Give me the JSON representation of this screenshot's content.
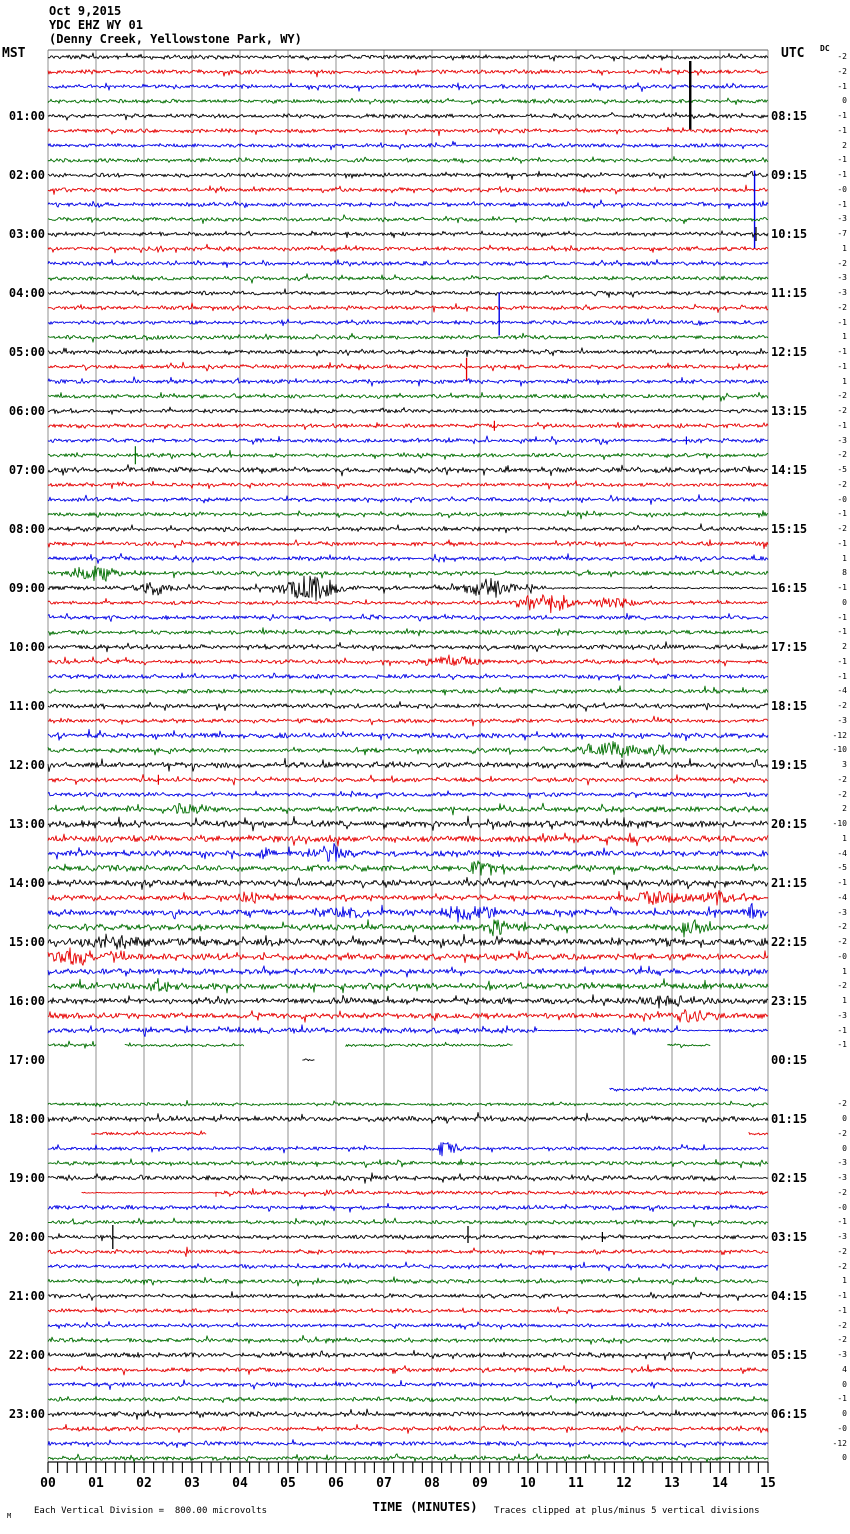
{
  "header": {
    "date": "Oct 9,2015",
    "station": "YDC EHZ WY 01",
    "location": "(Denny Creek, Yellowstone Park, WY)"
  },
  "axes": {
    "left_title": "MST",
    "right_title": "UTC",
    "dc_title": "DC",
    "x_title": "TIME (MINUTES)",
    "x_ticks": [
      "00",
      "01",
      "02",
      "03",
      "04",
      "05",
      "06",
      "07",
      "08",
      "09",
      "10",
      "11",
      "12",
      "13",
      "14",
      "15"
    ]
  },
  "footer": {
    "corner_mark": "M",
    "scale_note": "Each Vertical Division =  800.00 microvolts",
    "clip_note": "Traces clipped at plus/minus 5 vertical divisions"
  },
  "chart_data": {
    "type": "line",
    "title": "Helicorder / webicorder seismogram, station YDC EHZ WY 01 (Denny Creek, Yellowstone Park, WY), Oct 9, 2015",
    "x_range_minutes": [
      0,
      15
    ],
    "minutes_per_row": 15,
    "rows": 96,
    "row_start_mst": "00:00",
    "grid": true,
    "clip_divisions": 5,
    "microvolts_per_division": 800.0,
    "trace_colors_cycle": [
      "#000000",
      "#e60000",
      "#0000e6",
      "#006e00"
    ],
    "left_time_labels": [
      "01:00",
      "02:00",
      "03:00",
      "04:00",
      "05:00",
      "06:00",
      "07:00",
      "08:00",
      "09:00",
      "10:00",
      "11:00",
      "12:00",
      "13:00",
      "14:00",
      "15:00",
      "16:00",
      "17:00",
      "18:00",
      "19:00",
      "20:00",
      "21:00",
      "22:00",
      "23:00"
    ],
    "right_time_labels": [
      "08:15",
      "09:15",
      "10:15",
      "11:15",
      "12:15",
      "13:15",
      "14:15",
      "15:15",
      "16:15",
      "17:15",
      "18:15",
      "19:15",
      "20:15",
      "21:15",
      "22:15",
      "23:15",
      "00:15",
      "01:15",
      "02:15",
      "03:15",
      "04:15",
      "05:15",
      "06:15"
    ],
    "dc_offsets": [
      "-2",
      "-2",
      "-1",
      "0",
      "-1",
      "-1",
      "2",
      "-1",
      "-1",
      "-0",
      "-1",
      "-3",
      "-7",
      "1",
      "-2",
      "-3",
      "-3",
      "-2",
      "-1",
      "1",
      "-1",
      "-1",
      "1",
      "-2",
      "-2",
      "-1",
      "-3",
      "-2",
      "-5",
      "-2",
      "-0",
      "-1",
      "-2",
      "-1",
      "1",
      "8",
      "-1",
      "0",
      "-1",
      "-1",
      "2",
      "-1",
      "-1",
      "-4",
      "-2",
      "-3",
      "-12",
      "-10",
      "3",
      "-2",
      "-2",
      "2",
      "-10",
      "1",
      "-4",
      "-5",
      "-1",
      "-4",
      "-3",
      "-2",
      "-2",
      "-0",
      "1",
      "-2",
      "1",
      "-3",
      "-1",
      "-1",
      "",
      "",
      "",
      "-2",
      "0",
      "-2",
      "0",
      "-3",
      "-3",
      "-2",
      "-0",
      "-1",
      "-3",
      "-2",
      "-2",
      "1",
      "-1",
      "-1",
      "-2",
      "-2",
      "-3",
      "4",
      "0",
      "-1",
      "0",
      "-0",
      "-12",
      "0"
    ],
    "traces": [
      {
        "a": 1.3
      },
      {
        "a": 1.3
      },
      {
        "a": 1.25
      },
      {
        "a": 1.25
      },
      {
        "a": 1.25,
        "s": [
          [
            13.38,
            55,
            14,
            2.4
          ]
        ]
      },
      {
        "a": 1.25
      },
      {
        "a": 1.25
      },
      {
        "a": 1.25
      },
      {
        "a": 1.3
      },
      {
        "a": 1.3
      },
      {
        "a": 1.25,
        "s": [
          [
            14.72,
            34,
            44,
            1.4
          ]
        ]
      },
      {
        "a": 1.25
      },
      {
        "a": 1.25,
        "s": [
          [
            14.75,
            7,
            7,
            1.2
          ]
        ]
      },
      {
        "a": 1.25
      },
      {
        "a": 1.25
      },
      {
        "a": 1.25
      },
      {
        "a": 1.25
      },
      {
        "a": 1.25
      },
      {
        "a": 1.25,
        "s": [
          [
            9.4,
            30,
            13,
            1.4
          ]
        ]
      },
      {
        "a": 1.25
      },
      {
        "a": 1.25
      },
      {
        "a": 1.25,
        "s": [
          [
            8.72,
            9,
            14,
            1.3
          ]
        ]
      },
      {
        "a": 1.25
      },
      {
        "a": 1.25
      },
      {
        "a": 1.25
      },
      {
        "a": 1.25,
        "s": [
          [
            9.3,
            5,
            5,
            1.2
          ]
        ]
      },
      {
        "a": 1.25,
        "s": [
          [
            13.3,
            4,
            4,
            1.2
          ]
        ]
      },
      {
        "a": 1.25,
        "s": [
          [
            1.82,
            9,
            9,
            1.2
          ]
        ]
      },
      {
        "a": 1.7
      },
      {
        "a": 1.25
      },
      {
        "a": 1.25
      },
      {
        "a": 1.25
      },
      {
        "a": 1.3
      },
      {
        "a": 1.3
      },
      {
        "a": 1.35
      },
      {
        "a": 1.35,
        "b": [
          [
            1.0,
            0.9,
            4
          ]
        ]
      },
      {
        "sp": [
          [
            0,
            10.4,
            1.5
          ],
          [
            10.4,
            15,
            0.55
          ]
        ],
        "b": [
          [
            2.2,
            0.5,
            3.5
          ],
          [
            5.5,
            0.9,
            7
          ],
          [
            9.15,
            0.8,
            5
          ]
        ]
      },
      {
        "sp": [
          [
            0,
            9.6,
            1.1
          ],
          [
            9.6,
            15,
            1.05
          ]
        ],
        "b": [
          [
            10.4,
            0.9,
            5
          ],
          [
            11.8,
            0.9,
            2.5
          ]
        ]
      },
      {
        "a": 1.25
      },
      {
        "a": 1.3
      },
      {
        "a": 1.4
      },
      {
        "a": 1.3,
        "b": [
          [
            8.4,
            1.0,
            3
          ]
        ]
      },
      {
        "a": 1.3
      },
      {
        "a": 1.4
      },
      {
        "a": 1.4
      },
      {
        "a": 1.3
      },
      {
        "a": 1.6
      },
      {
        "a": 1.4,
        "b": [
          [
            11.7,
            0.8,
            5
          ],
          [
            12.7,
            0.5,
            3
          ]
        ]
      },
      {
        "a": 1.8
      },
      {
        "a": 1.4,
        "s": [
          [
            2.3,
            5,
            5,
            1.2
          ]
        ]
      },
      {
        "a": 1.4
      },
      {
        "a": 1.7,
        "b": [
          [
            2.9,
            0.9,
            2.5
          ]
        ]
      },
      {
        "a": 2.1
      },
      {
        "a": 2.1
      },
      {
        "a": 1.9,
        "b": [
          [
            4.5,
            0.4,
            3
          ],
          [
            5.9,
            0.5,
            5
          ]
        ]
      },
      {
        "a": 1.9,
        "b": [
          [
            9.0,
            0.5,
            4
          ]
        ]
      },
      {
        "a": 2.0
      },
      {
        "a": 1.7,
        "b": [
          [
            4.2,
            0.4,
            3.5
          ],
          [
            12.7,
            0.9,
            4
          ],
          [
            14.0,
            0.6,
            3.5
          ]
        ]
      },
      {
        "a": 1.9,
        "b": [
          [
            6.1,
            0.7,
            4
          ],
          [
            8.7,
            0.9,
            4.5
          ],
          [
            14.7,
            0.4,
            5
          ]
        ]
      },
      {
        "a": 1.9,
        "b": [
          [
            9.4,
            0.6,
            4
          ],
          [
            13.4,
            0.7,
            4
          ]
        ]
      },
      {
        "a": 2.4,
        "b": [
          [
            1.3,
            0.8,
            3
          ]
        ]
      },
      {
        "a": 2.1,
        "b": [
          [
            0.8,
            1.2,
            4
          ]
        ]
      },
      {
        "a": 1.8
      },
      {
        "a": 1.9,
        "b": [
          [
            2.3,
            0.4,
            4
          ]
        ]
      },
      {
        "a": 1.9,
        "b": [
          [
            12.9,
            0.8,
            3
          ]
        ]
      },
      {
        "a": 1.8,
        "b": [
          [
            13.4,
            0.7,
            3
          ]
        ]
      },
      {
        "sp": [
          [
            0,
            10.2,
            1.7
          ],
          [
            10.2,
            11.0,
            0.25
          ],
          [
            11.0,
            13.2,
            1.4
          ],
          [
            13.2,
            14.1,
            0.25
          ],
          [
            14.1,
            15,
            1.1
          ]
        ]
      },
      {
        "sp": [
          [
            0,
            1.0,
            1.1
          ],
          [
            1.6,
            4.1,
            0.9
          ],
          [
            6.2,
            9.7,
            0.9
          ],
          [
            12.9,
            13.8,
            0.8
          ]
        ]
      },
      {
        "sp": [
          [
            5.3,
            5.55,
            0.8
          ]
        ]
      },
      {
        "sp": []
      },
      {
        "sp": [
          [
            11.7,
            15,
            1.1
          ]
        ]
      },
      {
        "a": 1.0
      },
      {
        "a": 1.6
      },
      {
        "sp": [
          [
            0.9,
            3.3,
            1.0
          ],
          [
            14.6,
            15,
            0.8
          ]
        ]
      },
      {
        "sp": [
          [
            0,
            6.9,
            1.1
          ],
          [
            6.9,
            8.0,
            0.35
          ],
          [
            8.0,
            15,
            1.1
          ]
        ],
        "b": [
          [
            8.3,
            0.4,
            4
          ]
        ]
      },
      {
        "a": 1.2
      },
      {
        "sp": [
          [
            0,
            14.35,
            1.5
          ],
          [
            14.35,
            15,
            0.4
          ]
        ]
      },
      {
        "sp": [
          [
            0.7,
            3.6,
            0.3
          ],
          [
            3.6,
            15,
            1.15
          ]
        ],
        "s": [
          [
            3.5,
            1,
            4,
            1
          ]
        ]
      },
      {
        "a": 1.3
      },
      {
        "a": 1.2
      },
      {
        "a": 1.2,
        "s": [
          [
            1.35,
            12,
            12,
            1.3
          ],
          [
            8.75,
            11,
            6,
            1.3
          ],
          [
            11.55,
            5,
            5,
            1.2
          ]
        ]
      },
      {
        "a": 1.2
      },
      {
        "a": 1.2
      },
      {
        "a": 1.3
      },
      {
        "a": 1.3
      },
      {
        "a": 1.2
      },
      {
        "a": 1.2
      },
      {
        "a": 1.3
      },
      {
        "a": 1.5
      },
      {
        "a": 1.3
      },
      {
        "a": 1.3
      },
      {
        "a": 1.3
      },
      {
        "a": 1.5
      },
      {
        "a": 1.3
      },
      {
        "a": 1.3
      },
      {
        "a": 1.3
      }
    ]
  }
}
